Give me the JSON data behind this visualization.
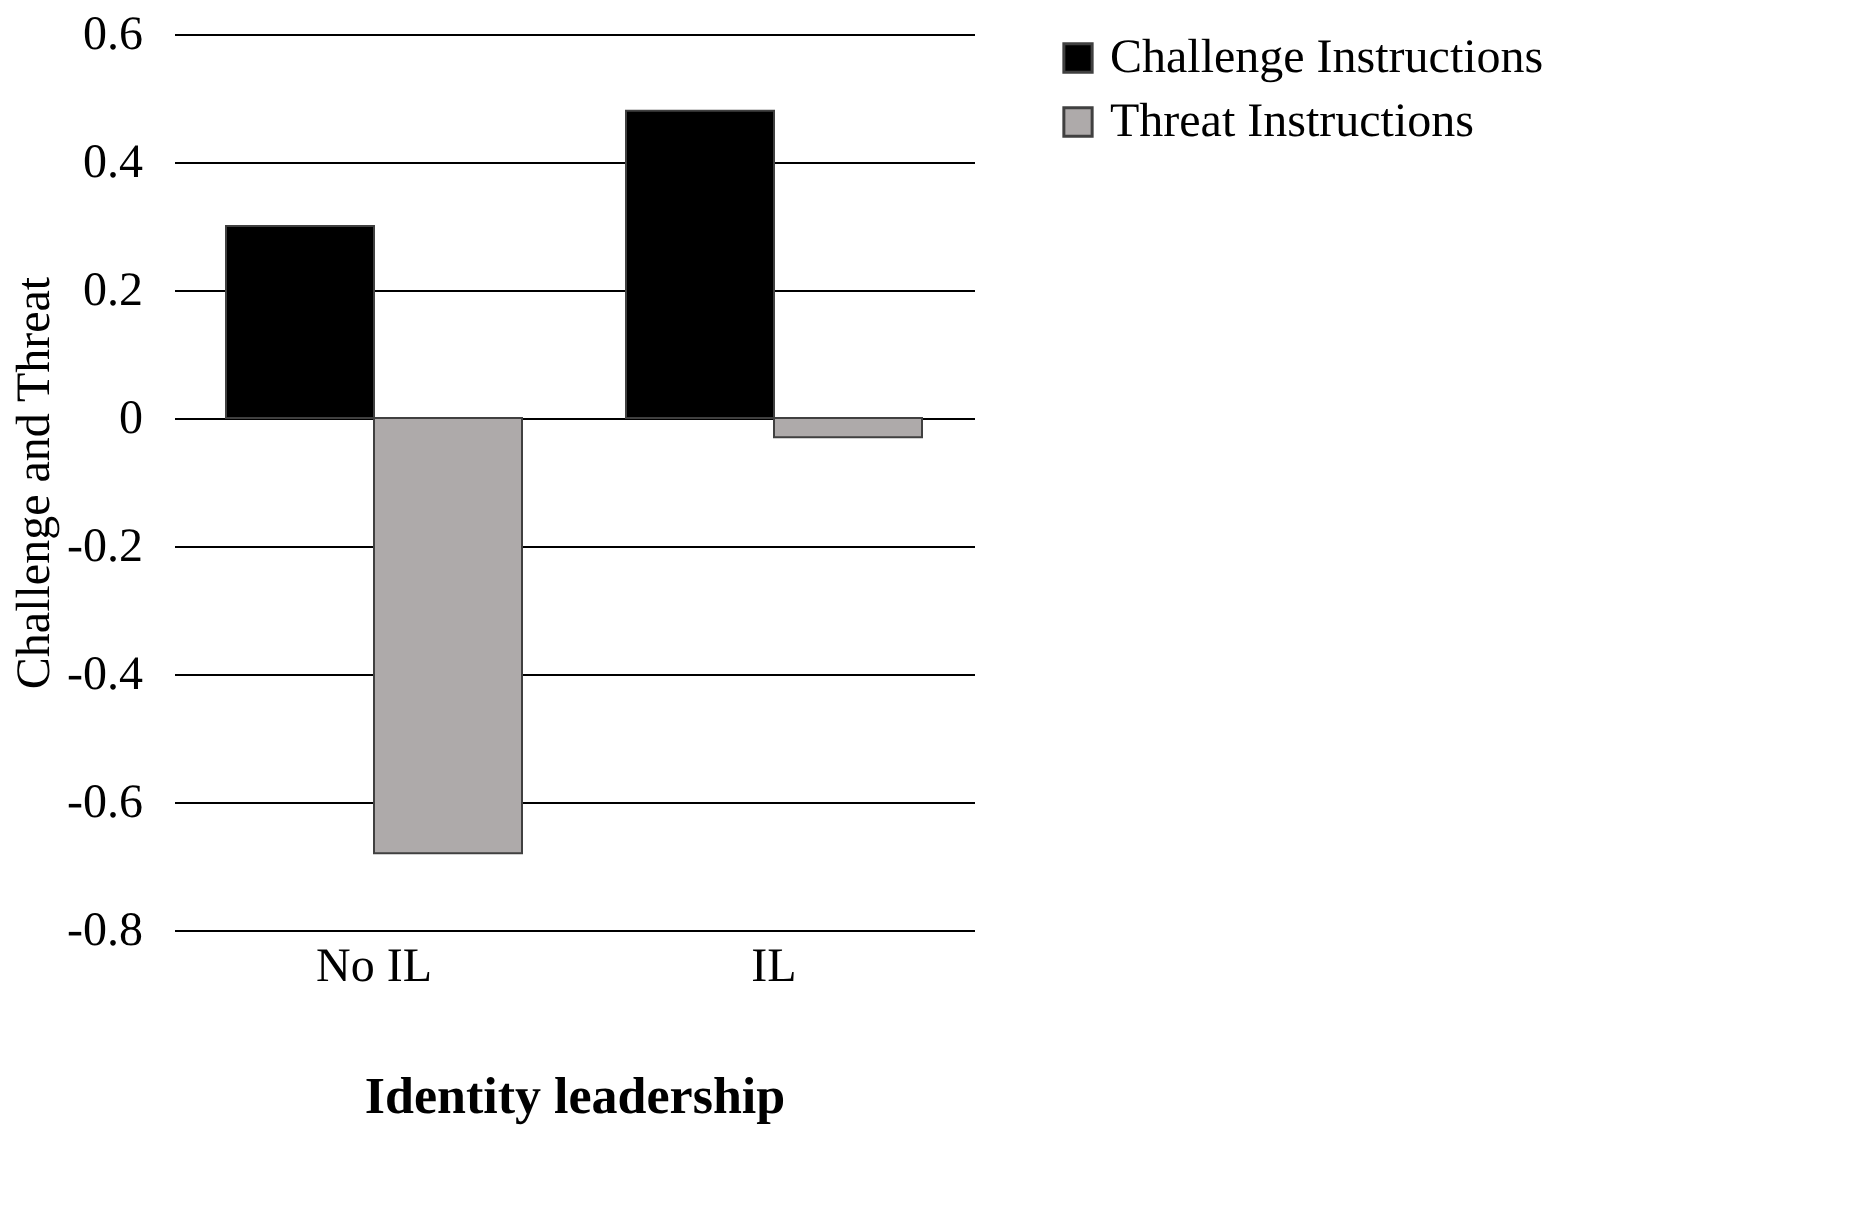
{
  "chart_data": {
    "type": "bar",
    "xlabel": "Identity leadership",
    "ylabel": "Challenge and Threat",
    "categories": [
      "No IL",
      "IL"
    ],
    "series": [
      {
        "name": "Challenge Instructions",
        "color": "#000000",
        "values": [
          0.3,
          0.48
        ]
      },
      {
        "name": "Threat Instructions",
        "color": "#aeaaaa",
        "values": [
          -0.68,
          -0.03
        ]
      }
    ],
    "ylim": [
      -0.8,
      0.6
    ],
    "yticks": [
      -0.8,
      -0.6,
      -0.4,
      -0.2,
      0,
      0.2,
      0.4,
      0.6
    ],
    "grid": "y",
    "legend": "right"
  }
}
